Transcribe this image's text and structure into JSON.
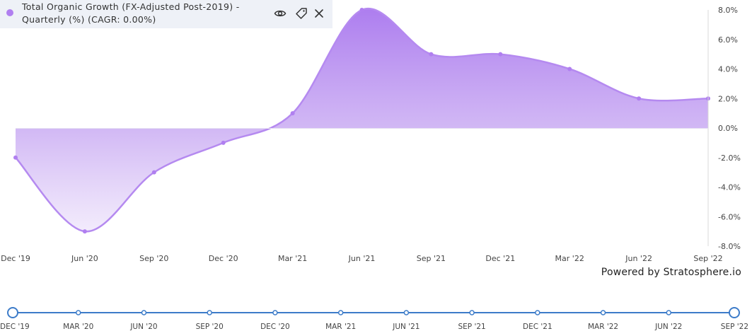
{
  "colors": {
    "series": "#b07ff0",
    "series_line": "#b58af0",
    "nav_line": "#3d7cc9",
    "legend_bg": "#eef1f7"
  },
  "legend": {
    "title": "Total Organic Growth (FX-Adjusted Post-2019) - Quarterly (%) (CAGR: 0.00%)",
    "icons": [
      "eye-icon",
      "tag-icon",
      "close-icon"
    ]
  },
  "powered_by": "Powered by Stratosphere.io",
  "chart_data": {
    "type": "area",
    "x_labels": [
      "Dec '19",
      "Jun '20",
      "Sep '20",
      "Dec '20",
      "Mar '21",
      "Jun '21",
      "Sep '21",
      "Dec '21",
      "Mar '22",
      "Jun '22",
      "Sep '22"
    ],
    "y_tick_labels": [
      "8.0%",
      "6.0%",
      "4.0%",
      "2.0%",
      "0.0%",
      "-2.0%",
      "-4.0%",
      "-6.0%",
      "-8.0%"
    ],
    "ylim": [
      -8,
      8
    ],
    "y_axis_position": "right",
    "grid": false,
    "series": [
      {
        "x": [
          "Dec '19",
          "Jun '20",
          "Sep '20",
          "Dec '20",
          "Mar '21",
          "Jun '21",
          "Sep '21",
          "Dec '21",
          "Mar '22",
          "Jun '22",
          "Sep '22"
        ],
        "values": [
          -2.0,
          -7.0,
          -3.0,
          -1.0,
          1.0,
          8.0,
          5.0,
          5.0,
          4.0,
          2.0,
          2.0
        ]
      }
    ]
  },
  "navigator": {
    "labels": [
      "DEC '19",
      "MAR '20",
      "JUN '20",
      "SEP '20",
      "DEC '20",
      "MAR '21",
      "JUN '21",
      "SEP '21",
      "DEC '21",
      "MAR '22",
      "JUN '22",
      "SEP '22"
    ]
  }
}
